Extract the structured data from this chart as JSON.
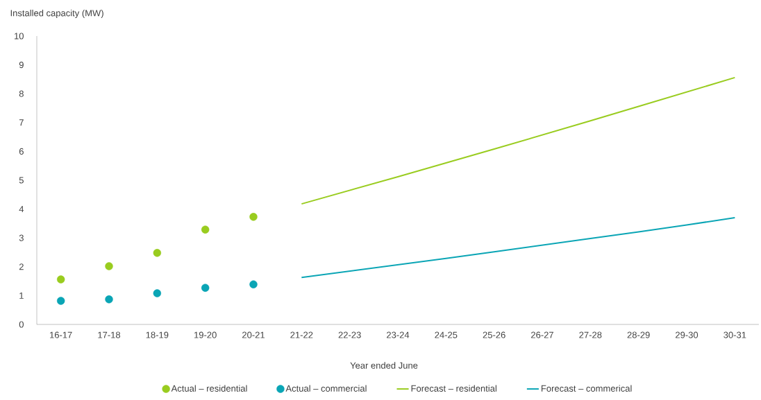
{
  "chart_data": {
    "type": "line",
    "ylabel": "Installed capacity (MW)",
    "xlabel": "Year ended June",
    "categories": [
      "16-17",
      "17-18",
      "18-19",
      "19-20",
      "20-21",
      "21-22",
      "22-23",
      "23-24",
      "24-25",
      "25-26",
      "26-27",
      "27-28",
      "28-29",
      "29-30",
      "30-31"
    ],
    "series": [
      {
        "name": "Actual – residential",
        "type": "scatter",
        "color": "#99cc1f",
        "values": [
          1.56,
          2.02,
          2.48,
          3.29,
          3.73,
          null,
          null,
          null,
          null,
          null,
          null,
          null,
          null,
          null,
          null
        ]
      },
      {
        "name": "Actual – commercial",
        "type": "scatter",
        "color": "#0aa5b5",
        "values": [
          0.82,
          0.87,
          1.08,
          1.27,
          1.39,
          null,
          null,
          null,
          null,
          null,
          null,
          null,
          null,
          null,
          null
        ]
      },
      {
        "name": "Forecast – residential",
        "type": "line",
        "color": "#99cc1f",
        "values": [
          null,
          null,
          null,
          null,
          null,
          4.18,
          4.65,
          5.12,
          5.6,
          6.08,
          6.57,
          7.06,
          7.56,
          8.06,
          8.56
        ]
      },
      {
        "name": "Forecast – commerical",
        "type": "line",
        "color": "#0aa5b5",
        "values": [
          null,
          null,
          null,
          null,
          null,
          1.63,
          1.85,
          2.07,
          2.29,
          2.52,
          2.75,
          2.98,
          3.21,
          3.45,
          3.7
        ]
      }
    ],
    "ylim": [
      0,
      10
    ],
    "yticks": [
      0,
      1,
      2,
      3,
      4,
      5,
      6,
      7,
      8,
      9,
      10
    ],
    "grid": false,
    "legend": "bottom"
  }
}
